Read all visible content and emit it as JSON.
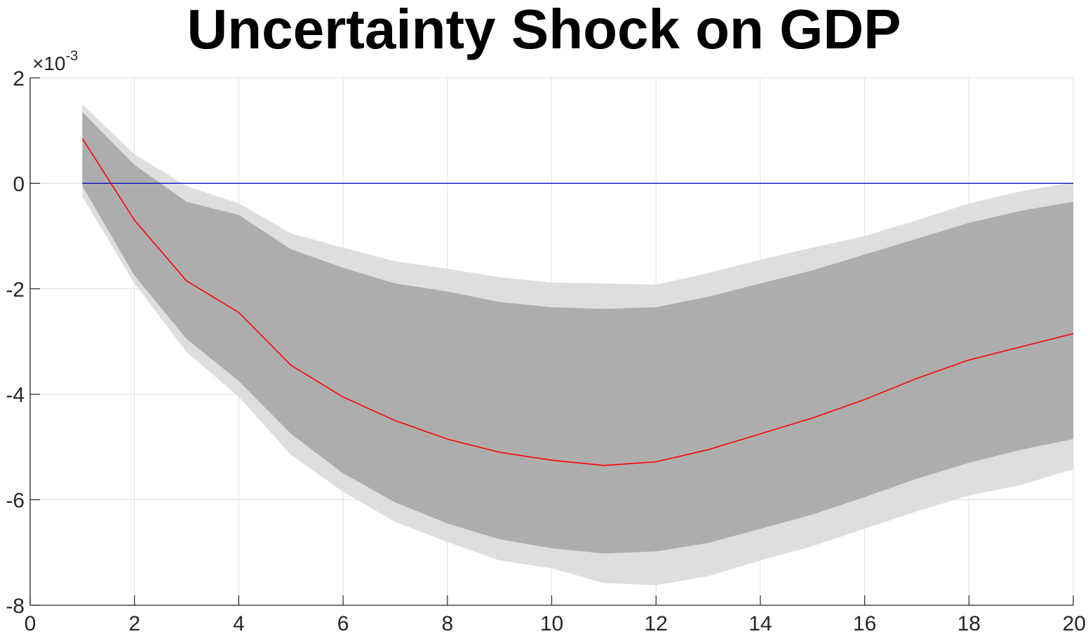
{
  "chart_data": {
    "type": "line",
    "title": "Uncertainty Shock on GDP",
    "xlabel": "",
    "ylabel": "",
    "y_exponent_label": "×10",
    "y_exponent_power": "-3",
    "xlim": [
      0,
      20
    ],
    "ylim": [
      -8,
      2
    ],
    "x_ticks": [
      "0",
      "2",
      "4",
      "6",
      "8",
      "10",
      "12",
      "14",
      "16",
      "18",
      "20"
    ],
    "y_ticks": [
      "2",
      "0",
      "-2",
      "-4",
      "-6",
      "-8"
    ],
    "grid": true,
    "x": [
      1,
      2,
      3,
      4,
      5,
      6,
      7,
      8,
      9,
      10,
      11,
      12,
      13,
      14,
      15,
      16,
      17,
      18,
      19,
      20
    ],
    "median": [
      0.85,
      -0.7,
      -1.85,
      -2.45,
      -3.45,
      -4.05,
      -4.5,
      -4.85,
      -5.1,
      -5.25,
      -5.35,
      -5.28,
      -5.05,
      -4.75,
      -4.45,
      -4.1,
      -3.7,
      -3.35,
      -3.1,
      -2.85
    ],
    "inner_upper": [
      1.35,
      0.35,
      -0.35,
      -0.6,
      -1.25,
      -1.6,
      -1.9,
      -2.05,
      -2.25,
      -2.35,
      -2.38,
      -2.35,
      -2.15,
      -1.9,
      -1.65,
      -1.35,
      -1.05,
      -0.75,
      -0.52,
      -0.35
    ],
    "inner_lower": [
      -0.05,
      -1.75,
      -2.95,
      -3.75,
      -4.75,
      -5.5,
      -6.05,
      -6.45,
      -6.75,
      -6.92,
      -7.02,
      -6.98,
      -6.82,
      -6.55,
      -6.28,
      -5.95,
      -5.6,
      -5.3,
      -5.05,
      -4.85
    ],
    "outer_upper": [
      1.5,
      0.55,
      -0.05,
      -0.38,
      -0.95,
      -1.22,
      -1.48,
      -1.62,
      -1.78,
      -1.88,
      -1.9,
      -1.92,
      -1.7,
      -1.45,
      -1.22,
      -1.0,
      -0.7,
      -0.38,
      -0.15,
      0.02
    ],
    "outer_lower": [
      -0.25,
      -1.9,
      -3.2,
      -4.05,
      -5.15,
      -5.85,
      -6.42,
      -6.8,
      -7.15,
      -7.3,
      -7.58,
      -7.62,
      -7.45,
      -7.15,
      -6.88,
      -6.55,
      -6.22,
      -5.92,
      -5.72,
      -5.42
    ],
    "zero_line": 0,
    "colors": {
      "median": "#ff0000",
      "zero_line": "#0000cc",
      "inner_band": "#adadad",
      "outer_band": "#dedede",
      "grid": "#dfdfdf",
      "axis": "#262626"
    }
  }
}
